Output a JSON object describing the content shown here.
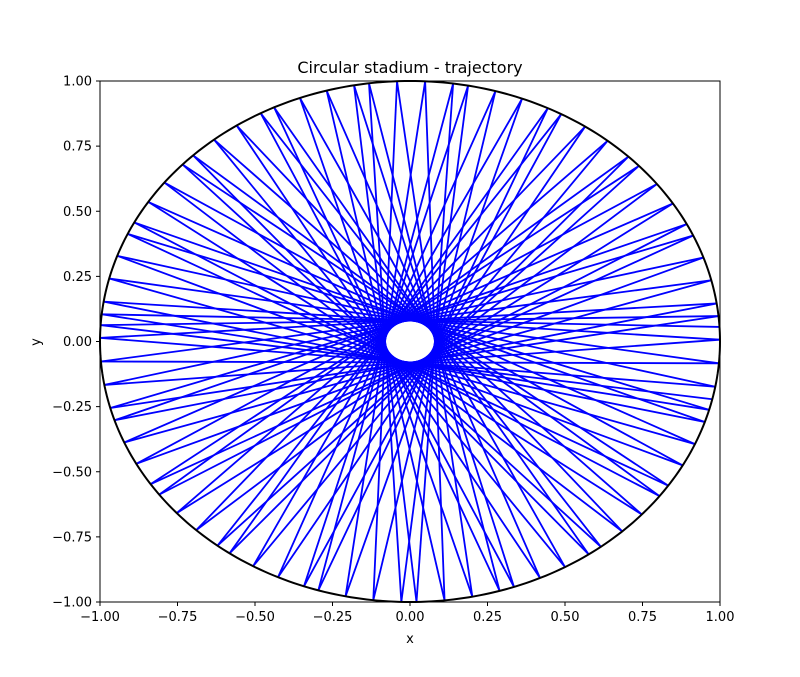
{
  "chart_data": {
    "type": "line",
    "title": "Circular stadium - trajectory",
    "xlabel": "x",
    "ylabel": "y",
    "xlim": [
      -1.0,
      1.0
    ],
    "ylim": [
      -1.0,
      1.0
    ],
    "x_ticks": [
      "-1.00",
      "-0.75",
      "-0.50",
      "-0.25",
      "0.00",
      "0.25",
      "0.50",
      "0.75",
      "1.00"
    ],
    "y_ticks": [
      "-1.00",
      "-0.75",
      "-0.50",
      "-0.25",
      "0.00",
      "0.25",
      "0.50",
      "0.75",
      "1.00"
    ],
    "grid": false,
    "boundary": {
      "shape": "circle",
      "center": [
        0.0,
        0.0
      ],
      "radius": 1.0,
      "color": "#000000"
    },
    "trajectory": {
      "color": "#0000ff",
      "start_angle_deg": 3.2,
      "step_angle_deg": 170.8,
      "bounces": 80
    }
  }
}
